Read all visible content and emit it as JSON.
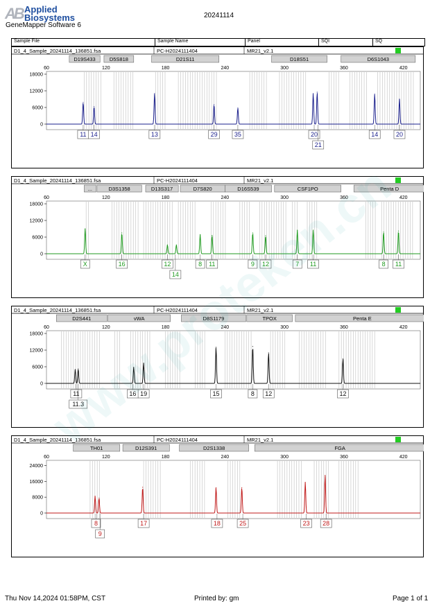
{
  "header": {
    "logo_mark": "AB",
    "brand_line1": "Applied",
    "brand_line2": "Biosystems",
    "software": "GeneMapper Software 6",
    "date": "20241114"
  },
  "columns": {
    "sample_file": "Sample File",
    "sample_name": "Sample Name",
    "panel": "Panel",
    "sqi": "SQI",
    "sq": "SQ"
  },
  "colors": {
    "blue": "#1a1f8c",
    "green": "#1f9a1f",
    "black": "#111111",
    "red": "#c01818",
    "status": "#22cc22",
    "marker_bg": "#d2d2d2",
    "bin": "#c8c8c8"
  },
  "watermark": "www.proteken.cn",
  "footer": {
    "date": "Thu Nov 14,2024 01:58PM, CST",
    "printed_by": "Printed by: gm",
    "page": "Page 1 of 1"
  },
  "chart_data": [
    {
      "type": "line",
      "dye": "blue",
      "file": "D1_4_Sample_20241114_136851.fsa",
      "sample": "PC-H2024111404",
      "panel": "MR21_v2.1",
      "x_ticks": [
        60,
        120,
        180,
        240,
        300,
        360,
        420
      ],
      "xlim": [
        60,
        437
      ],
      "y_ticks": [
        0,
        6000,
        12000,
        18000
      ],
      "ylim": [
        0,
        20000
      ],
      "markers": [
        {
          "name": "D19S433",
          "start": 83,
          "end": 114
        },
        {
          "name": "D5S818",
          "start": 118,
          "end": 148
        },
        {
          "name": "D21S11",
          "start": 166,
          "end": 234
        },
        {
          "name": "D18S51",
          "start": 287,
          "end": 343
        },
        {
          "name": "D6S1043",
          "start": 357,
          "end": 432
        }
      ],
      "bins": [
        [
          98,
          116
        ],
        [
          128,
          149
        ],
        [
          170,
          180
        ],
        [
          193,
          232
        ],
        [
          265,
          283
        ],
        [
          295,
          322
        ],
        [
          345,
          356
        ],
        [
          366,
          383
        ],
        [
          394,
          430
        ]
      ],
      "peaks": [
        {
          "x": 97,
          "height": 7800
        },
        {
          "x": 108,
          "height": 6300
        },
        {
          "x": 169,
          "height": 11000
        },
        {
          "x": 229,
          "height": 7000
        },
        {
          "x": 253,
          "height": 5800
        },
        {
          "x": 329,
          "height": 11000
        },
        {
          "x": 333,
          "height": 11500
        },
        {
          "x": 391,
          "height": 10800
        },
        {
          "x": 416,
          "height": 9000
        }
      ],
      "alleles": [
        {
          "x": 97,
          "label": "11"
        },
        {
          "x": 108,
          "label": "14"
        },
        {
          "x": 169,
          "label": "13"
        },
        {
          "x": 229,
          "label": "29"
        },
        {
          "x": 253,
          "label": "35"
        },
        {
          "x": 330,
          "label": "20"
        },
        {
          "x": 391,
          "label": "14"
        },
        {
          "x": 416,
          "label": "20"
        }
      ],
      "alleles_row2": [
        {
          "x": 334,
          "label": "21"
        }
      ]
    },
    {
      "type": "line",
      "dye": "green",
      "file": "D1_4_Sample_20241114_136851.fsa",
      "sample": "PC-H2024111404",
      "panel": "MR21_v2.1",
      "x_ticks": [
        60,
        120,
        180,
        240,
        300,
        360,
        420
      ],
      "xlim": [
        60,
        437
      ],
      "y_ticks": [
        0,
        6000,
        12000,
        18000
      ],
      "ylim": [
        0,
        20000
      ],
      "markers": [
        {
          "name": "...",
          "start": 98,
          "end": 110
        },
        {
          "name": "D3S1358",
          "start": 111,
          "end": 156
        },
        {
          "name": "D13S317",
          "start": 160,
          "end": 193
        },
        {
          "name": "D7S820",
          "start": 195,
          "end": 240
        },
        {
          "name": "D16S539",
          "start": 240,
          "end": 287
        },
        {
          "name": "CSF1PO",
          "start": 290,
          "end": 357
        },
        {
          "name": "Penta D",
          "start": 370,
          "end": 442
        }
      ],
      "bins": [
        [
          100,
          103
        ],
        [
          126,
          153
        ],
        [
          158,
          188
        ],
        [
          193,
          211
        ],
        [
          226,
          241
        ],
        [
          255,
          266
        ],
        [
          275,
          302
        ],
        [
          308,
          314
        ],
        [
          323,
          333
        ],
        [
          382,
          392
        ],
        [
          398,
          430
        ]
      ],
      "peaks": [
        {
          "x": 99,
          "height": 9000
        },
        {
          "x": 136,
          "height": 7500
        },
        {
          "x": 182,
          "height": 3200
        },
        {
          "x": 191,
          "height": 3200
        },
        {
          "x": 215,
          "height": 6900
        },
        {
          "x": 227,
          "height": 6600
        },
        {
          "x": 268,
          "height": 7500
        },
        {
          "x": 281,
          "height": 6500
        },
        {
          "x": 313,
          "height": 8500
        },
        {
          "x": 329,
          "height": 8500
        },
        {
          "x": 400,
          "height": 7800
        },
        {
          "x": 415,
          "height": 8200
        }
      ],
      "alleles": [
        {
          "x": 99,
          "label": "X"
        },
        {
          "x": 136,
          "label": "16"
        },
        {
          "x": 182,
          "label": "12"
        },
        {
          "x": 215,
          "label": "8"
        },
        {
          "x": 227,
          "label": "11"
        },
        {
          "x": 268,
          "label": "9"
        },
        {
          "x": 281,
          "label": "12"
        },
        {
          "x": 313,
          "label": "7"
        },
        {
          "x": 329,
          "label": "11"
        },
        {
          "x": 400,
          "label": "8"
        },
        {
          "x": 415,
          "label": "11"
        }
      ],
      "alleles_row2": [
        {
          "x": 190,
          "label": "14"
        }
      ]
    },
    {
      "type": "line",
      "dye": "black",
      "file": "D1_4_Sample_20241114_136851.fsa",
      "sample": "PC-H2024111404",
      "panel": "MR21_v2.1",
      "x_ticks": [
        60,
        120,
        180,
        240,
        300,
        360,
        420
      ],
      "xlim": [
        60,
        437
      ],
      "y_ticks": [
        0,
        6000,
        12000,
        18000
      ],
      "ylim": [
        0,
        20000
      ],
      "markers": [
        {
          "name": "D2S441",
          "start": 70,
          "end": 121
        },
        {
          "name": "vWA",
          "start": 122,
          "end": 185
        },
        {
          "name": "D8S1179",
          "start": 196,
          "end": 261
        },
        {
          "name": "TPOX",
          "start": 262,
          "end": 308
        },
        {
          "name": "Penta E",
          "start": 311,
          "end": 446
        }
      ],
      "bins": [
        [
          75,
          115
        ],
        [
          129,
          135
        ],
        [
          145,
          165
        ],
        [
          180,
          195
        ],
        [
          210,
          222
        ],
        [
          240,
          267
        ],
        [
          286,
          302
        ],
        [
          315,
          342
        ],
        [
          355,
          392
        ]
      ],
      "peaks": [
        {
          "x": 89,
          "height": 5000
        },
        {
          "x": 92,
          "height": 5200
        },
        {
          "x": 148,
          "height": 5800
        },
        {
          "x": 158,
          "height": 7300
        },
        {
          "x": 231,
          "height": 13000
        },
        {
          "x": 268,
          "height": 13300
        },
        {
          "x": 284,
          "height": 11000
        },
        {
          "x": 359,
          "height": 8800
        }
      ],
      "alleles": [
        {
          "x": 90,
          "label": "11"
        },
        {
          "x": 147,
          "label": "16"
        },
        {
          "x": 158,
          "label": "19"
        },
        {
          "x": 231,
          "label": "15"
        },
        {
          "x": 268,
          "label": "8"
        },
        {
          "x": 284,
          "label": "12"
        },
        {
          "x": 359,
          "label": "12"
        }
      ],
      "alleles_row2": [
        {
          "x": 92,
          "label": "11.3"
        }
      ]
    },
    {
      "type": "line",
      "dye": "red",
      "file": "D1_4_Sample_20241114_136851.fsa",
      "sample": "PC-H2024111404",
      "panel": "MR21_v2.1",
      "x_ticks": [
        60,
        120,
        180,
        240,
        300,
        360,
        420
      ],
      "xlim": [
        60,
        437
      ],
      "y_ticks": [
        0,
        8000,
        16000,
        24000
      ],
      "ylim": [
        0,
        28000
      ],
      "markers": [
        {
          "name": "TH01",
          "start": 87,
          "end": 134
        },
        {
          "name": "D12S391",
          "start": 137,
          "end": 184
        },
        {
          "name": "D2S1338",
          "start": 194,
          "end": 264
        },
        {
          "name": "FGA",
          "start": 270,
          "end": 442
        }
      ],
      "bins": [
        [
          104,
          116
        ],
        [
          158,
          176
        ],
        [
          205,
          220
        ],
        [
          243,
          257
        ],
        [
          293,
          318
        ],
        [
          330,
          345
        ],
        [
          355,
          375
        ]
      ],
      "peaks": [
        {
          "x": 109,
          "height": 8500
        },
        {
          "x": 113,
          "height": 7500
        },
        {
          "x": 157,
          "height": 13000
        },
        {
          "x": 231,
          "height": 12800
        },
        {
          "x": 257,
          "height": 12800
        },
        {
          "x": 321,
          "height": 15500
        },
        {
          "x": 341,
          "height": 19000
        }
      ],
      "alleles": [
        {
          "x": 110,
          "label": "8"
        },
        {
          "x": 158,
          "label": "17"
        },
        {
          "x": 232,
          "label": "18"
        },
        {
          "x": 258,
          "label": "25"
        },
        {
          "x": 322,
          "label": "23"
        },
        {
          "x": 342,
          "label": "28"
        }
      ],
      "alleles_row2": [
        {
          "x": 114,
          "label": "9"
        }
      ]
    }
  ]
}
